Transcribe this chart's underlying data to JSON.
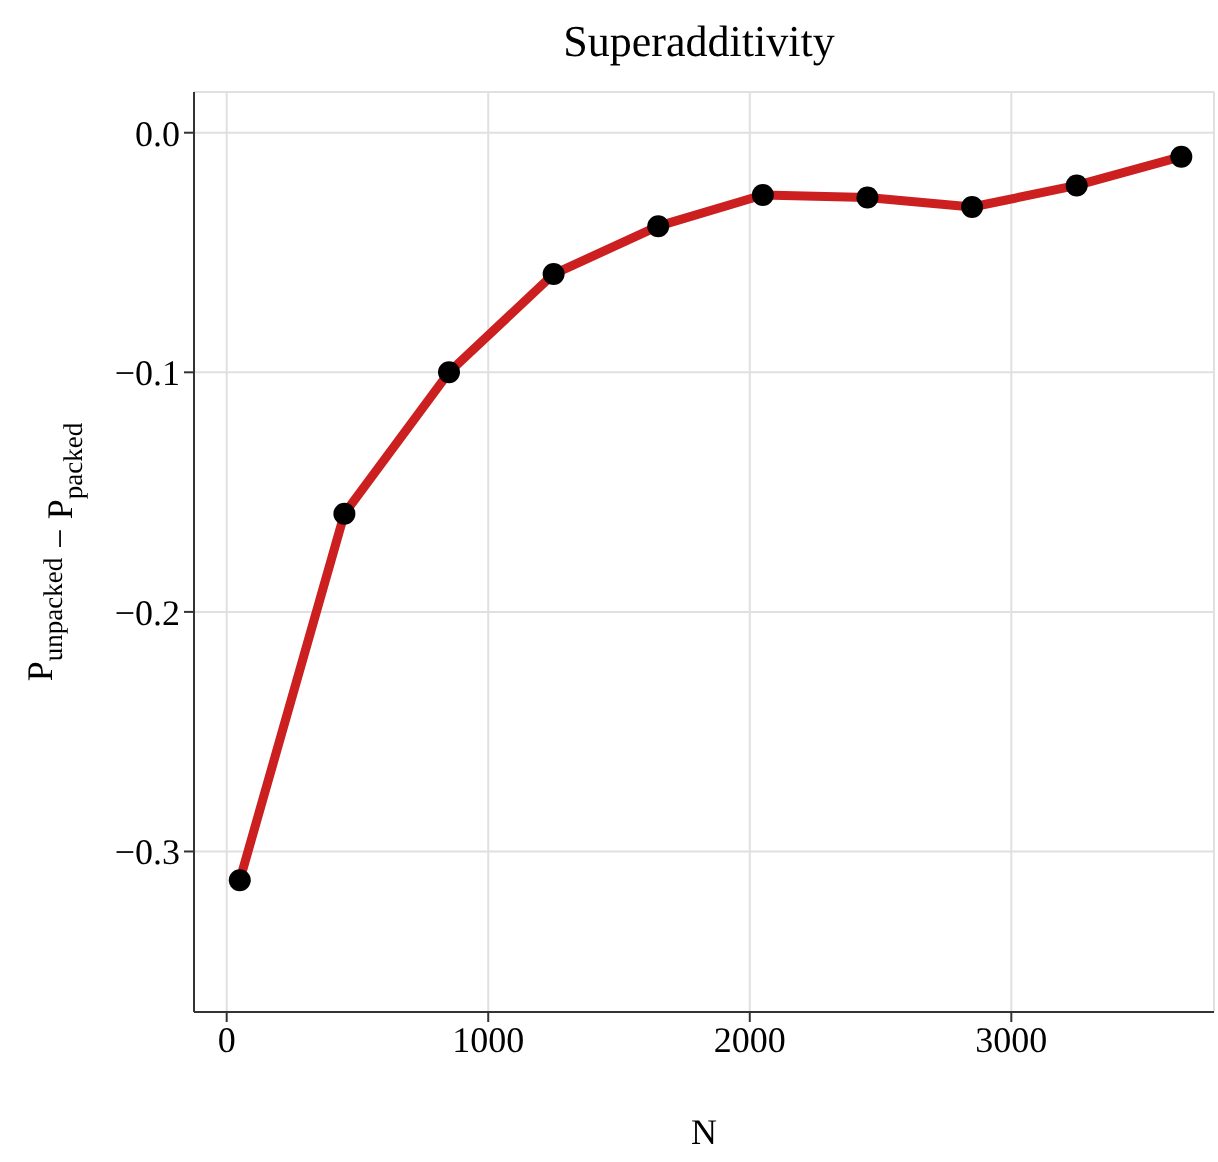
{
  "chart_data": {
    "type": "line",
    "title": "Superadditivity",
    "xlabel": "N",
    "ylabel": "P$_{unpacked}$ − P$_{packed}$",
    "x": [
      50,
      450,
      850,
      1250,
      1650,
      2050,
      2450,
      2850,
      3250,
      3650
    ],
    "series": [
      {
        "color": "#cc1f1f",
        "values": [
          -0.312,
          -0.159,
          -0.1,
          -0.059,
          -0.039,
          -0.026,
          -0.027,
          -0.031,
          -0.022,
          -0.01
        ]
      }
    ],
    "xlim": [
      -125,
      3775
    ],
    "xticks": [
      0,
      1000,
      2000,
      3000
    ],
    "ylim": [
      -0.367,
      0.017
    ],
    "yticks": [
      -0.3,
      -0.2,
      -0.1,
      {
        "value": 0,
        "label": "0.0"
      }
    ],
    "grid": true,
    "marker": "circle",
    "line_style": "solid"
  }
}
